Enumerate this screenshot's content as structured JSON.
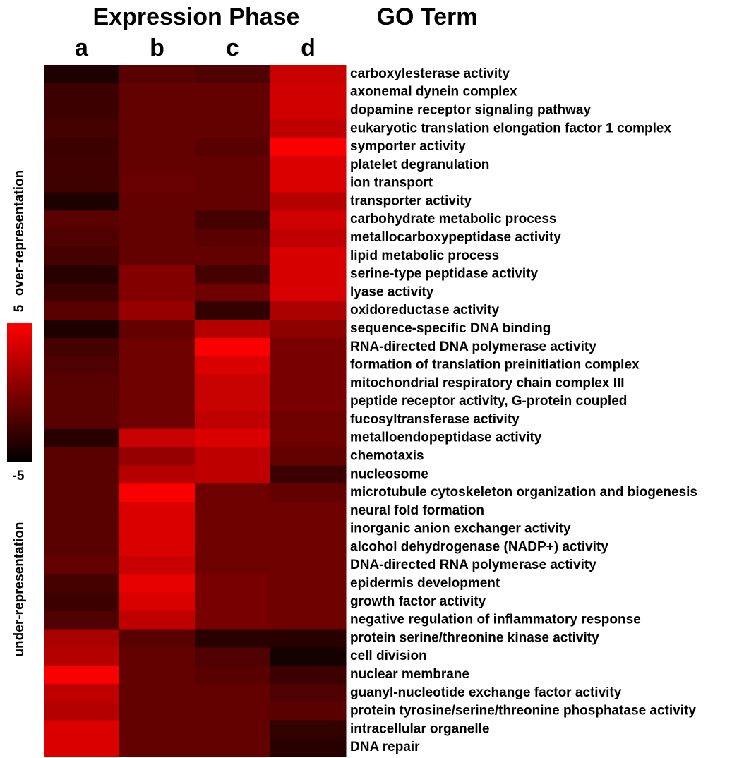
{
  "chart_data": {
    "type": "heatmap",
    "title": "Expression Phase",
    "row_axis_title": "GO Term",
    "columns": [
      "a",
      "b",
      "c",
      "d"
    ],
    "categories": [
      "carboxylesterase activity",
      "axonemal dynein complex",
      "dopamine receptor signaling pathway",
      "eukaryotic translation elongation factor 1 complex",
      "symporter activity",
      "platelet degranulation",
      "ion transport",
      "transporter activity",
      "carbohydrate metabolic process",
      "metallocarboxypeptidase activity",
      "lipid metabolic process",
      "serine-type peptidase activity",
      "lyase activity",
      "oxidoreductase activity",
      "sequence-specific DNA binding",
      "RNA-directed DNA polymerase activity",
      "formation of translation preinitiation complex",
      "mitochondrial respiratory chain complex III",
      "peptide receptor activity, G-protein coupled",
      "fucosyltransferase activity",
      "metalloendopeptidase activity",
      "chemotaxis",
      "nucleosome",
      "microtubule cytoskeleton organization and biogenesis",
      "neural fold formation",
      "inorganic anion exchanger activity",
      "alcohol dehydrogenase (NADP+) activity",
      "DNA-directed RNA polymerase activity",
      "epidermis development",
      "growth factor activity",
      "negative regulation of inflammatory response",
      "protein serine/threonine kinase activity",
      "cell division",
      "nuclear membrane",
      "guanyl-nucleotide exchange factor activity",
      "protein tyrosine/serine/threonine phosphatase activity",
      "intracellular organelle",
      "DNA repair"
    ],
    "values": [
      [
        -3.8,
        -1.5,
        -1.9,
        2.8
      ],
      [
        -2.6,
        -1.1,
        -1.1,
        3.2
      ],
      [
        -2.6,
        -1.1,
        -1.1,
        3.2
      ],
      [
        -2.3,
        -1.1,
        -1.1,
        2.5
      ],
      [
        -2.6,
        -1.1,
        -1.5,
        4.8
      ],
      [
        -2.5,
        -1.1,
        -1.1,
        3.6
      ],
      [
        -2.5,
        -0.9,
        -1.1,
        3.6
      ],
      [
        -3.8,
        -1.1,
        -1.1,
        2.1
      ],
      [
        -1.5,
        -1.1,
        -2.3,
        3.2
      ],
      [
        -1.9,
        -1.1,
        -1.5,
        2.5
      ],
      [
        -2.3,
        -1.1,
        -1.1,
        3.4
      ],
      [
        -3.4,
        0.1,
        -2.3,
        3.4
      ],
      [
        -2.6,
        0.1,
        -0.7,
        3.4
      ],
      [
        -1.5,
        0.9,
        -3.0,
        1.7
      ],
      [
        -3.8,
        -1.1,
        2.1,
        0.5
      ],
      [
        -2.3,
        -0.7,
        4.8,
        -0.3
      ],
      [
        -1.9,
        -0.7,
        3.6,
        -0.3
      ],
      [
        -1.5,
        -0.7,
        2.8,
        -0.3
      ],
      [
        -1.5,
        -0.7,
        2.8,
        -0.3
      ],
      [
        -1.5,
        -0.7,
        2.5,
        -0.7
      ],
      [
        -3.4,
        2.8,
        3.6,
        -0.7
      ],
      [
        -1.5,
        0.9,
        2.5,
        -1.1
      ],
      [
        -1.5,
        2.1,
        2.5,
        -2.6
      ],
      [
        -1.5,
        4.8,
        -0.7,
        -1.1
      ],
      [
        -1.5,
        3.6,
        -0.7,
        -0.7
      ],
      [
        -1.5,
        3.6,
        -0.7,
        -0.7
      ],
      [
        -1.5,
        3.6,
        -0.7,
        -0.7
      ],
      [
        -1.1,
        2.8,
        -0.7,
        -0.7
      ],
      [
        -2.3,
        4.0,
        -0.3,
        -0.7
      ],
      [
        -2.6,
        3.6,
        -0.3,
        -0.7
      ],
      [
        -1.9,
        2.5,
        -0.3,
        -0.7
      ],
      [
        1.7,
        -1.5,
        -3.4,
        -3.4
      ],
      [
        2.1,
        -1.1,
        -1.9,
        -4.2
      ],
      [
        4.8,
        -1.1,
        -1.5,
        -2.6
      ],
      [
        2.5,
        -1.1,
        -1.1,
        -1.9
      ],
      [
        2.1,
        -1.1,
        -1.1,
        -1.5
      ],
      [
        3.6,
        -1.1,
        -1.1,
        -3.0
      ],
      [
        3.6,
        -1.1,
        -1.1,
        -3.4
      ]
    ],
    "zlim": [
      -5,
      5
    ],
    "zticks": [
      5,
      -5
    ],
    "colormap": [
      "#000000",
      "#ff0000"
    ],
    "colorbar_labels": [
      "over-representation",
      "under-representation"
    ]
  }
}
